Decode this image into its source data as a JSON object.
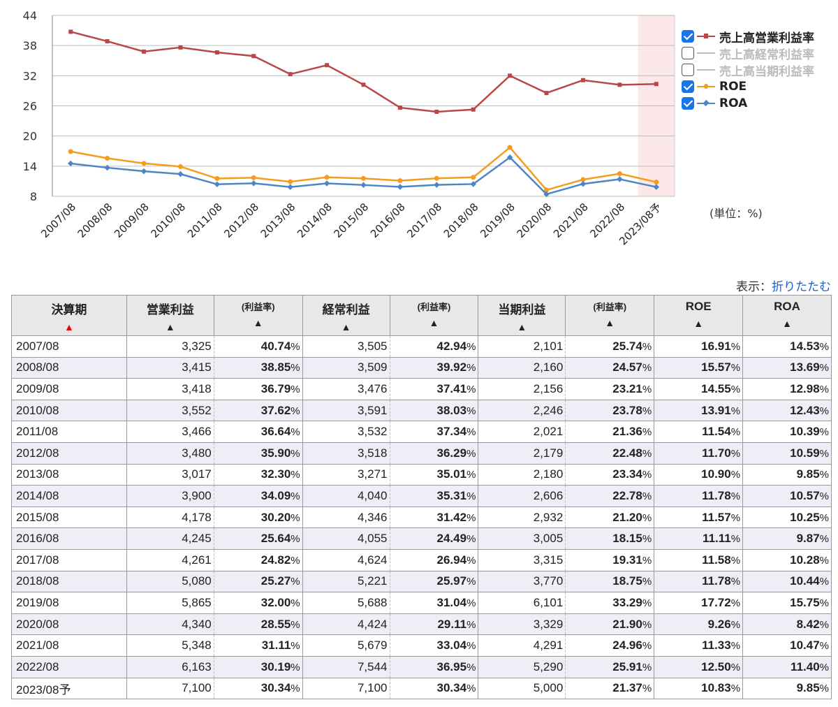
{
  "chart_data": {
    "type": "line",
    "categories": [
      "2007/08",
      "2008/08",
      "2009/08",
      "2010/08",
      "2011/08",
      "2012/08",
      "2013/08",
      "2014/08",
      "2015/08",
      "2016/08",
      "2017/08",
      "2018/08",
      "2019/08",
      "2020/08",
      "2021/08",
      "2022/08",
      "2023/08予"
    ],
    "ylim": [
      8,
      44
    ],
    "yticks": [
      8,
      14,
      20,
      26,
      32,
      38,
      44
    ],
    "series": [
      {
        "name": "売上高営業利益率",
        "color": "#b94748",
        "marker": "square",
        "visible": true,
        "values": [
          40.74,
          38.85,
          36.79,
          37.62,
          36.64,
          35.9,
          32.3,
          34.09,
          30.2,
          25.64,
          24.82,
          25.27,
          32.0,
          28.55,
          31.11,
          30.19,
          30.34
        ]
      },
      {
        "name": "売上高経常利益率",
        "color": "#bbbbbb",
        "marker": "triangle",
        "visible": false,
        "values": [
          42.94,
          39.92,
          37.41,
          38.03,
          37.34,
          36.29,
          35.01,
          35.31,
          31.42,
          24.49,
          26.94,
          25.97,
          31.04,
          29.11,
          33.04,
          36.95,
          30.34
        ]
      },
      {
        "name": "売上高当期利益率",
        "color": "#bbbbbb",
        "marker": "line",
        "visible": false,
        "values": [
          25.74,
          24.57,
          23.21,
          23.78,
          21.36,
          22.48,
          23.34,
          22.78,
          21.2,
          18.15,
          19.31,
          18.75,
          33.29,
          21.9,
          24.96,
          25.91,
          21.37
        ]
      },
      {
        "name": "ROE",
        "color": "#f59b1e",
        "marker": "circle",
        "visible": true,
        "values": [
          16.91,
          15.57,
          14.55,
          13.91,
          11.54,
          11.7,
          10.9,
          11.78,
          11.57,
          11.11,
          11.58,
          11.78,
          17.72,
          9.26,
          11.33,
          12.5,
          10.83
        ]
      },
      {
        "name": "ROA",
        "color": "#4e86c5",
        "marker": "diamond",
        "visible": true,
        "values": [
          14.53,
          13.69,
          12.98,
          12.43,
          10.39,
          10.59,
          9.85,
          10.57,
          10.25,
          9.87,
          10.28,
          10.44,
          15.75,
          8.42,
          10.47,
          11.4,
          9.85
        ]
      }
    ],
    "forecast_band_color": "#fce8e8",
    "grid": true,
    "legend_position": "right"
  },
  "unit_label": "(単位：%)",
  "toggle": {
    "prefix": "表示：",
    "link": "折りたたむ"
  },
  "table": {
    "headers": {
      "period": "決算期",
      "op": "営業利益",
      "op_rate": "(利益率)",
      "ord": "経常利益",
      "ord_rate": "(利益率)",
      "net": "当期利益",
      "net_rate": "(利益率)",
      "roe": "ROE",
      "roa": "ROA",
      "sort_active": "▲",
      "sort": "▲"
    },
    "pct_sign": "%",
    "rows": [
      [
        "2007/08",
        "3,325",
        "40.74",
        "3,505",
        "42.94",
        "2,101",
        "25.74",
        "16.91",
        "14.53"
      ],
      [
        "2008/08",
        "3,415",
        "38.85",
        "3,509",
        "39.92",
        "2,160",
        "24.57",
        "15.57",
        "13.69"
      ],
      [
        "2009/08",
        "3,418",
        "36.79",
        "3,476",
        "37.41",
        "2,156",
        "23.21",
        "14.55",
        "12.98"
      ],
      [
        "2010/08",
        "3,552",
        "37.62",
        "3,591",
        "38.03",
        "2,246",
        "23.78",
        "13.91",
        "12.43"
      ],
      [
        "2011/08",
        "3,466",
        "36.64",
        "3,532",
        "37.34",
        "2,021",
        "21.36",
        "11.54",
        "10.39"
      ],
      [
        "2012/08",
        "3,480",
        "35.90",
        "3,518",
        "36.29",
        "2,179",
        "22.48",
        "11.70",
        "10.59"
      ],
      [
        "2013/08",
        "3,017",
        "32.30",
        "3,271",
        "35.01",
        "2,180",
        "23.34",
        "10.90",
        "9.85"
      ],
      [
        "2014/08",
        "3,900",
        "34.09",
        "4,040",
        "35.31",
        "2,606",
        "22.78",
        "11.78",
        "10.57"
      ],
      [
        "2015/08",
        "4,178",
        "30.20",
        "4,346",
        "31.42",
        "2,932",
        "21.20",
        "11.57",
        "10.25"
      ],
      [
        "2016/08",
        "4,245",
        "25.64",
        "4,055",
        "24.49",
        "3,005",
        "18.15",
        "11.11",
        "9.87"
      ],
      [
        "2017/08",
        "4,261",
        "24.82",
        "4,624",
        "26.94",
        "3,315",
        "19.31",
        "11.58",
        "10.28"
      ],
      [
        "2018/08",
        "5,080",
        "25.27",
        "5,221",
        "25.97",
        "3,770",
        "18.75",
        "11.78",
        "10.44"
      ],
      [
        "2019/08",
        "5,865",
        "32.00",
        "5,688",
        "31.04",
        "6,101",
        "33.29",
        "17.72",
        "15.75"
      ],
      [
        "2020/08",
        "4,340",
        "28.55",
        "4,424",
        "29.11",
        "3,329",
        "21.90",
        "9.26",
        "8.42"
      ],
      [
        "2021/08",
        "5,348",
        "31.11",
        "5,679",
        "33.04",
        "4,291",
        "24.96",
        "11.33",
        "10.47"
      ],
      [
        "2022/08",
        "6,163",
        "30.19",
        "7,544",
        "36.95",
        "5,290",
        "25.91",
        "12.50",
        "11.40"
      ],
      [
        "2023/08予",
        "7,100",
        "30.34",
        "7,100",
        "30.34",
        "5,000",
        "21.37",
        "10.83",
        "9.85"
      ]
    ]
  }
}
